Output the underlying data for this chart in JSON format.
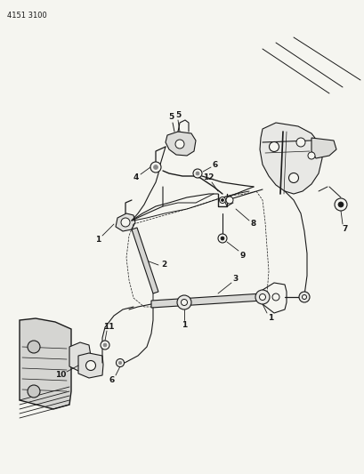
{
  "title_code": "4151 3100",
  "bg": "#f5f5f0",
  "lc": "#1a1a1a",
  "fig_w": 4.1,
  "fig_h": 5.33,
  "dpi": 100
}
